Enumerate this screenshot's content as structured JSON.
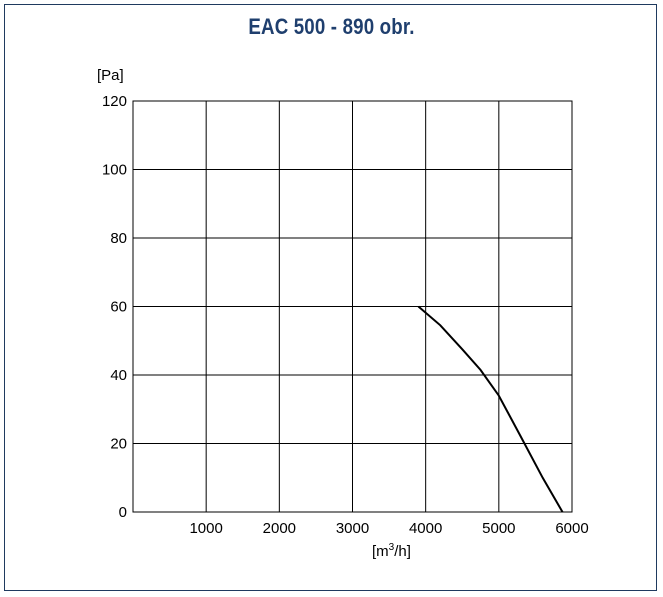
{
  "chart_data": {
    "type": "line",
    "title": "EAC 500 - 890 obr.",
    "ylabel": "[Pa]",
    "xlabel_parts": {
      "open": "[m",
      "sup": "3",
      "close": "/h]"
    },
    "xlim": [
      0,
      6000
    ],
    "ylim": [
      0,
      120
    ],
    "x_ticks": [
      1000,
      2000,
      3000,
      4000,
      5000,
      6000
    ],
    "y_ticks": [
      0,
      20,
      40,
      60,
      80,
      100,
      120
    ],
    "grid": true,
    "colors": {
      "line": "#000000",
      "grid": "#000000",
      "title": "#1f3f6e",
      "frame": "#1f3a5f"
    },
    "series": [
      {
        "x": [
          3900,
          4200,
          4500,
          4750,
          5000,
          5300,
          5600,
          5870
        ],
        "y": [
          60,
          54.5,
          47.5,
          41.5,
          34,
          22,
          10,
          0
        ]
      }
    ]
  }
}
